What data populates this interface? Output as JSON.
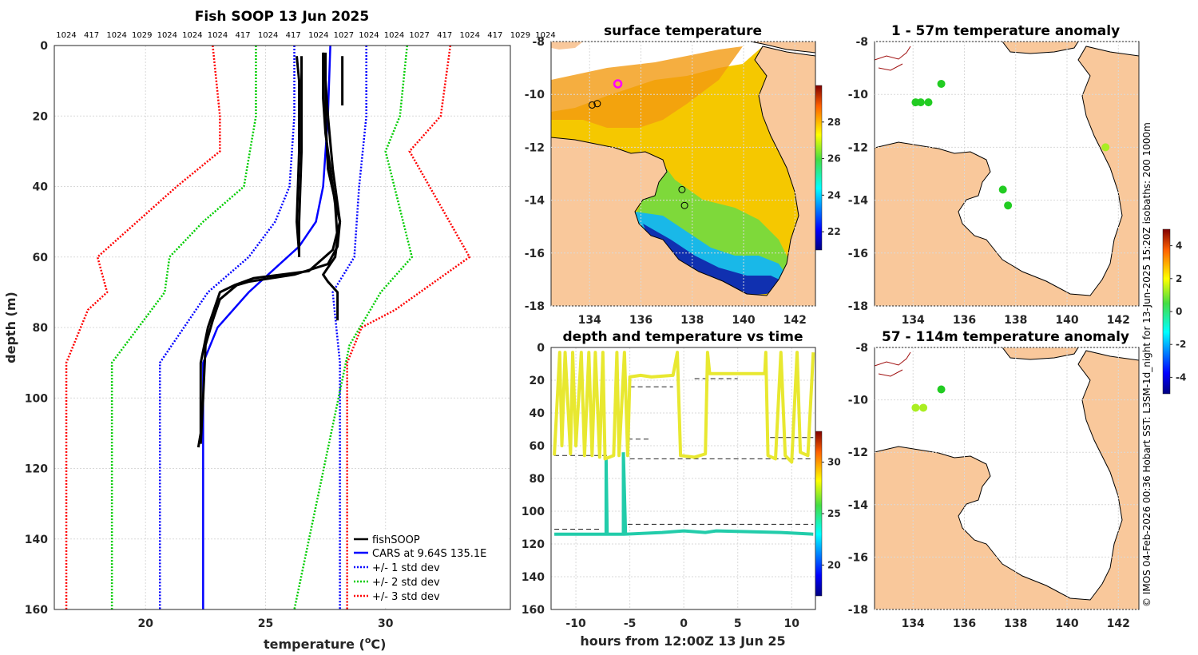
{
  "colors": {
    "fishsoop": "#000000",
    "cars": "#0000ff",
    "std1": "#0000ff",
    "std2": "#00cc00",
    "std3": "#ff0000",
    "land": "#f9c89b",
    "anomaly_green": "#22cc22",
    "anomaly_yellowgreen": "#aaee22",
    "depth_green": "#22ccaa",
    "depth_yellow": "#e8e830"
  },
  "credit": "© IMOS 04-Feb-2026 00:36 Hobart SST: L3SM-1d_night for 13-Jun-2025 15:20Z isobaths: 200  1000m",
  "chart_data": [
    {
      "id": "profile",
      "type": "line",
      "title": "Fish SOOP 13 Jun 2025",
      "xlabel": "temperature (",
      "xlabel_sup": "o",
      "xlabel_end": "C)",
      "ylabel": "depth (m)",
      "xlim": [
        16.2,
        35.2
      ],
      "ylim": [
        0,
        160
      ],
      "xticks": [
        20,
        25,
        30
      ],
      "yticks": [
        0,
        20,
        40,
        60,
        80,
        100,
        120,
        140,
        160
      ],
      "top_labels": [
        "1024",
        "417",
        "1024",
        "1029",
        "1024",
        "1024",
        "1024",
        "417",
        "1024",
        "417",
        "1024",
        "1027",
        "1024",
        "1024",
        "1027",
        "417",
        "1024",
        "417",
        "1029",
        "1024"
      ],
      "legend": [
        "fishSOOP",
        "CARS at 9.64S 135.1E",
        "+/- 1 std dev",
        "+/- 2 std dev",
        "+/- 3 std dev"
      ],
      "series": [
        {
          "name": "CARS mean",
          "style": "cars",
          "depth": [
            0,
            20,
            40,
            50,
            57,
            70,
            80,
            90,
            160
          ],
          "temp": [
            27.7,
            27.6,
            27.4,
            27.1,
            26.4,
            24.3,
            23.0,
            22.4,
            22.4
          ]
        },
        {
          "name": "-1 std",
          "style": "std1",
          "depth": [
            0,
            20,
            40,
            50,
            60,
            70,
            90,
            160
          ],
          "temp": [
            26.2,
            26.2,
            26.0,
            25.4,
            24.3,
            22.6,
            20.6,
            20.6
          ]
        },
        {
          "name": "+1 std",
          "style": "std1",
          "depth": [
            0,
            20,
            40,
            50,
            60,
            70,
            90,
            160
          ],
          "temp": [
            29.2,
            29.2,
            28.9,
            28.8,
            28.7,
            27.8,
            28.1,
            28.1
          ]
        },
        {
          "name": "-2 std",
          "style": "std2",
          "depth": [
            0,
            20,
            40,
            50,
            60,
            70,
            90,
            160
          ],
          "temp": [
            24.6,
            24.6,
            24.1,
            22.4,
            21.0,
            20.8,
            18.6,
            18.6
          ]
        },
        {
          "name": "+2 std",
          "style": "std2",
          "depth": [
            0,
            20,
            30,
            60,
            70,
            85,
            160
          ],
          "temp": [
            30.9,
            30.6,
            30.0,
            31.1,
            29.8,
            28.5,
            26.2
          ]
        },
        {
          "name": "-3 std",
          "style": "std3",
          "depth": [
            0,
            20,
            30,
            40,
            60,
            70,
            75,
            90,
            160
          ],
          "temp": [
            22.8,
            23.1,
            23.1,
            21.3,
            18.0,
            18.4,
            17.6,
            16.7,
            16.7
          ]
        },
        {
          "name": "+3 std",
          "style": "std3",
          "depth": [
            0,
            20,
            30,
            60,
            75,
            80,
            90,
            160
          ],
          "temp": [
            32.7,
            32.3,
            31.0,
            33.5,
            30.4,
            29.0,
            28.4,
            28.4
          ]
        }
      ],
      "fishsoop_profiles": [
        {
          "depth": [
            3,
            10,
            30,
            50,
            59
          ],
          "temp": [
            26.3,
            26.4,
            26.4,
            26.3,
            26.4
          ]
        },
        {
          "depth": [
            3,
            10,
            30,
            50,
            60
          ],
          "temp": [
            26.5,
            26.5,
            26.5,
            26.4,
            26.4
          ]
        },
        {
          "depth": [
            2,
            10,
            20,
            35,
            50,
            57,
            62,
            65,
            67,
            68,
            72,
            78,
            85,
            100,
            113
          ],
          "temp": [
            27.4,
            27.5,
            27.5,
            27.6,
            28.1,
            28.0,
            27.6,
            26.2,
            24.3,
            23.8,
            23.1,
            22.8,
            22.5,
            22.4,
            22.3
          ]
        },
        {
          "depth": [
            2,
            10,
            20,
            35,
            50,
            58,
            64,
            66,
            68,
            70,
            80,
            90,
            110,
            114
          ],
          "temp": [
            27.5,
            27.5,
            27.6,
            27.8,
            28.1,
            27.8,
            26.8,
            24.5,
            23.7,
            23.1,
            22.6,
            22.3,
            22.3,
            22.2
          ]
        },
        {
          "depth": [
            2,
            15,
            25,
            45,
            55,
            60,
            65,
            67,
            70,
            78
          ],
          "temp": [
            27.4,
            27.4,
            27.5,
            27.9,
            28.0,
            27.9,
            27.4,
            27.6,
            28.0,
            28.0
          ]
        },
        {
          "depth": [
            3,
            10,
            17
          ],
          "temp": [
            28.2,
            28.2,
            28.2
          ]
        }
      ]
    },
    {
      "id": "surface",
      "type": "heatmap",
      "title": "surface temperature",
      "xlim": [
        132.5,
        142.8
      ],
      "ylim": [
        -18,
        -8
      ],
      "xticks": [
        134,
        136,
        138,
        140,
        142
      ],
      "yticks": [
        -8,
        -10,
        -12,
        -14,
        -16,
        -18
      ],
      "colorbar_ticks": [
        22,
        24,
        26,
        28
      ],
      "colorbar_range": [
        21,
        30
      ],
      "stations": [
        [
          134.1,
          -10.4
        ],
        [
          134.3,
          -10.35
        ],
        [
          137.6,
          -13.6
        ],
        [
          137.7,
          -14.2
        ]
      ],
      "highlight_station": [
        135.1,
        -9.6
      ]
    },
    {
      "id": "anomaly1",
      "type": "scatter",
      "title": "1 - 57m temperature anomaly",
      "xlim": [
        132.5,
        142.8
      ],
      "ylim": [
        -18,
        -8
      ],
      "xticks": [
        134,
        136,
        138,
        140,
        142
      ],
      "yticks": [
        -8,
        -10,
        -12,
        -14,
        -16,
        -18
      ],
      "colorbar_ticks": [
        4,
        2,
        0,
        -2,
        -4
      ],
      "points": [
        [
          134.1,
          -10.3,
          0
        ],
        [
          134.3,
          -10.3,
          0
        ],
        [
          134.6,
          -10.3,
          0
        ],
        [
          135.1,
          -9.6,
          0
        ],
        [
          137.5,
          -13.6,
          0
        ],
        [
          137.7,
          -14.2,
          0
        ],
        [
          141.5,
          -12.0,
          1
        ]
      ]
    },
    {
      "id": "depthtime",
      "type": "line",
      "title": "depth and temperature vs time",
      "xlabel": "hours from 12:00Z 13 Jun 25",
      "xlim": [
        -12.3,
        12.2
      ],
      "ylim": [
        0,
        160
      ],
      "xticks": [
        -10,
        -5,
        0,
        5,
        10
      ],
      "yticks": [
        0,
        20,
        40,
        60,
        80,
        100,
        120,
        140,
        160
      ],
      "colorbar_ticks": [
        30,
        25,
        20
      ],
      "colorbar_range": [
        17,
        33
      ]
    },
    {
      "id": "anomaly2",
      "type": "scatter",
      "title": "57 - 114m temperature anomaly",
      "xlim": [
        132.5,
        142.8
      ],
      "ylim": [
        -18,
        -8
      ],
      "xticks": [
        134,
        136,
        138,
        140,
        142
      ],
      "yticks": [
        -8,
        -10,
        -12,
        -14,
        -16,
        -18
      ],
      "points": [
        [
          134.1,
          -10.3,
          1
        ],
        [
          134.4,
          -10.3,
          1
        ],
        [
          135.1,
          -9.6,
          0
        ]
      ]
    }
  ]
}
